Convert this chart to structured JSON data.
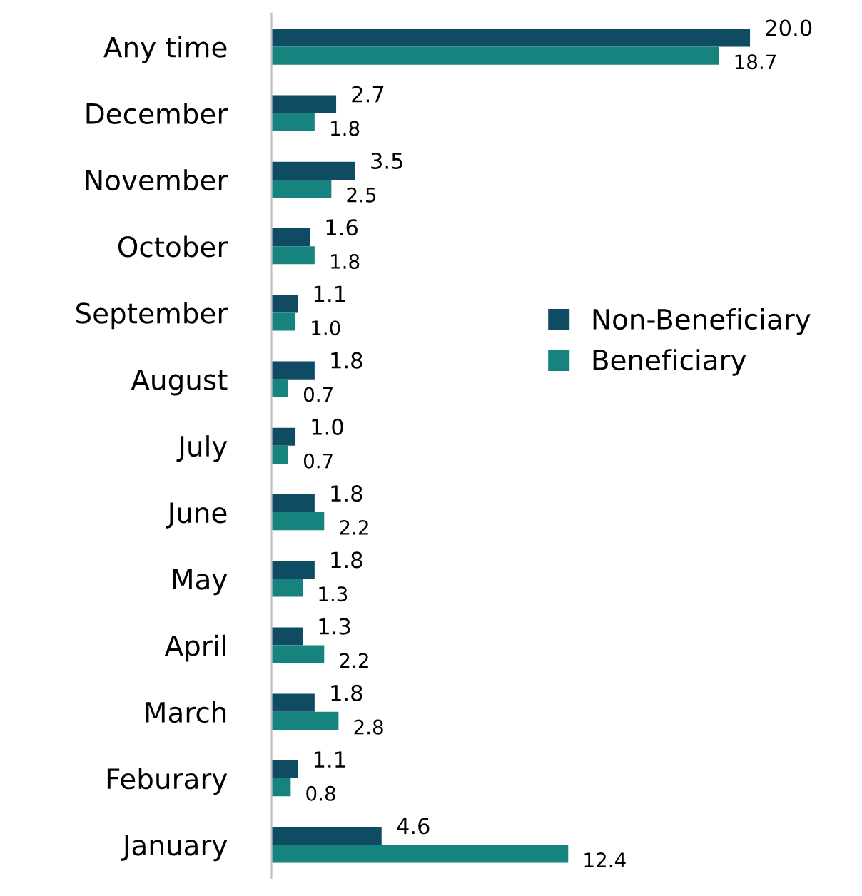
{
  "chart_data": {
    "type": "bar",
    "orientation": "horizontal",
    "categories": [
      "Any time",
      "December",
      "November",
      "October",
      "September",
      "August",
      "July",
      "June",
      "May",
      "April",
      "March",
      "Feburary",
      "January"
    ],
    "series": [
      {
        "name": "Non-Beneficiary",
        "color": "#0f4c64",
        "values": [
          20.0,
          2.7,
          3.5,
          1.6,
          1.1,
          1.8,
          1.0,
          1.8,
          1.8,
          1.3,
          1.8,
          1.1,
          4.6
        ],
        "value_labels": [
          "20.0",
          "2.7",
          "3.5",
          "1.6",
          "1.1",
          "1.8",
          "1.0",
          "1.8",
          "1.8",
          "1.3",
          "1.8",
          "1.1",
          "4.6"
        ]
      },
      {
        "name": "Beneficiary",
        "color": "#16837f",
        "values": [
          18.7,
          1.8,
          2.5,
          1.8,
          1.0,
          0.7,
          0.7,
          2.2,
          1.3,
          2.2,
          2.8,
          0.8,
          12.4
        ],
        "value_labels": [
          "18.7",
          "1.8",
          "2.5",
          "1.8",
          "1.0",
          "0.7",
          "0.7",
          "2.2",
          "1.3",
          "2.2",
          "2.8",
          "0.8",
          "12.4"
        ]
      }
    ],
    "legend": "right",
    "grid": false
  }
}
